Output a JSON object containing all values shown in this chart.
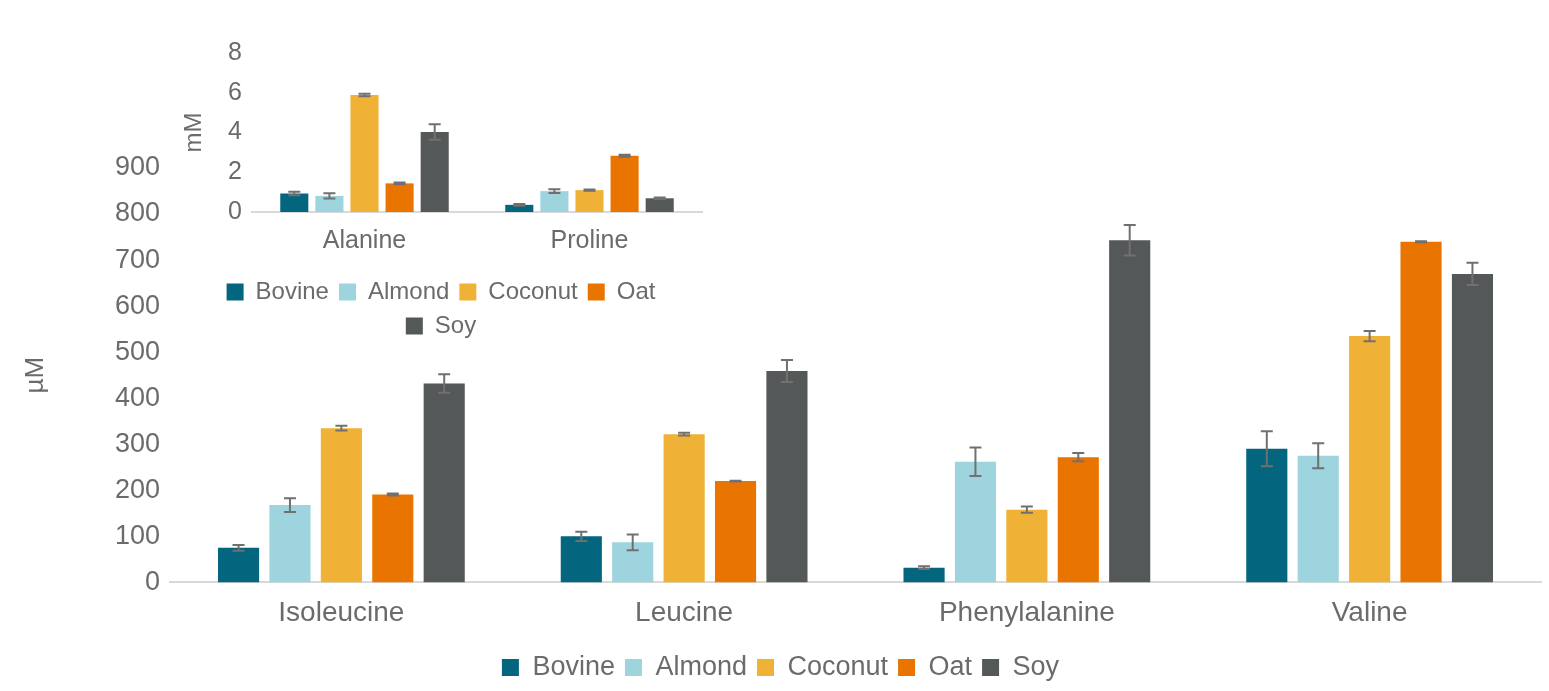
{
  "chart_data": [
    {
      "type": "bar",
      "categories": [
        "Isoleucine",
        "Leucine",
        "Phenylalanine",
        "Valine"
      ],
      "ylabel": "µM",
      "ylim": [
        0,
        900
      ],
      "yticks": [
        0,
        100,
        200,
        300,
        400,
        500,
        600,
        700,
        800,
        900
      ],
      "legend": "bottom",
      "series": [
        {
          "name": "Bovine",
          "color": "#03657e",
          "values": [
            75,
            100,
            32,
            290
          ],
          "errors": [
            6,
            10,
            3,
            38
          ]
        },
        {
          "name": "Almond",
          "color": "#9dd4dd",
          "values": [
            168,
            87,
            262,
            275
          ],
          "errors": [
            15,
            17,
            31,
            27
          ]
        },
        {
          "name": "Coconut",
          "color": "#efb236",
          "values": [
            335,
            322,
            158,
            535
          ],
          "errors": [
            5,
            3,
            7,
            11
          ]
        },
        {
          "name": "Oat",
          "color": "#e97500",
          "values": [
            191,
            220,
            272,
            740
          ],
          "errors": [
            2,
            1,
            9,
            1
          ]
        },
        {
          "name": "Soy",
          "color": "#545859",
          "values": [
            432,
            459,
            743,
            670
          ],
          "errors": [
            20,
            24,
            33,
            24
          ]
        }
      ]
    },
    {
      "type": "bar",
      "categories": [
        "Alanine",
        "Proline"
      ],
      "ylabel": "mM",
      "ylim": [
        0,
        8
      ],
      "yticks": [
        0,
        2,
        4,
        6,
        8
      ],
      "legend": "bottom",
      "series": [
        {
          "name": "Bovine",
          "color": "#03657e",
          "values": [
            0.93,
            0.36
          ],
          "errors": [
            0.09,
            0.04
          ]
        },
        {
          "name": "Almond",
          "color": "#9dd4dd",
          "values": [
            0.81,
            1.05
          ],
          "errors": [
            0.13,
            0.1
          ]
        },
        {
          "name": "Coconut",
          "color": "#efb236",
          "values": [
            5.89,
            1.1
          ],
          "errors": [
            0.06,
            0.03
          ]
        },
        {
          "name": "Oat",
          "color": "#e97500",
          "values": [
            1.44,
            2.83
          ],
          "errors": [
            0.05,
            0.05
          ]
        },
        {
          "name": "Soy",
          "color": "#545859",
          "values": [
            4.03,
            0.69
          ],
          "errors": [
            0.39,
            0.04
          ]
        }
      ]
    }
  ]
}
